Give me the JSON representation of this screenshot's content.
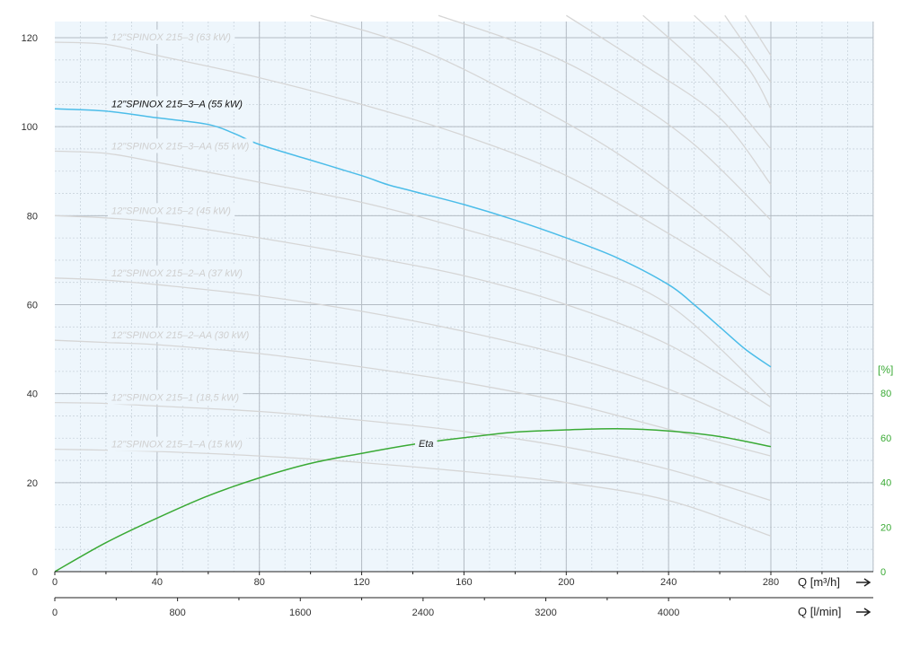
{
  "chart_data": {
    "type": "line",
    "x_unit_primary": "Q [m³/h]",
    "x_unit_secondary": "Q [l/min]",
    "eta_unit": "[%]",
    "xlim": [
      0,
      320
    ],
    "ylim": [
      0,
      125
    ],
    "eta_lim": [
      0,
      100
    ],
    "x_ticks": [
      0,
      40,
      80,
      120,
      160,
      200,
      240,
      280
    ],
    "x2_ticks": [
      0,
      800,
      1600,
      2400,
      3200,
      4000
    ],
    "y_ticks": [
      0,
      20,
      40,
      60,
      80,
      100,
      120
    ],
    "eta_ticks": [
      0,
      20,
      40,
      60,
      80
    ],
    "grid": true,
    "background_color": "#eef6fc",
    "colors": {
      "highlight": "#4cbde9",
      "eta": "#3aaa35",
      "other": "#d6d6d6",
      "other_label": "#cfcfcf"
    },
    "series": [
      {
        "name": "12\"SPINOX 215–3 (63 kW)",
        "highlight": false,
        "points": [
          [
            0,
            119
          ],
          [
            20,
            118.5
          ],
          [
            40,
            116
          ],
          [
            80,
            111
          ],
          [
            120,
            105
          ],
          [
            160,
            98
          ],
          [
            200,
            89
          ],
          [
            240,
            76
          ],
          [
            280,
            62
          ]
        ]
      },
      {
        "name": "12\"SPINOX 215–3–A (55 kW)",
        "highlight": true,
        "points": [
          [
            0,
            104
          ],
          [
            20,
            103.5
          ],
          [
            40,
            102
          ],
          [
            60,
            100.5
          ],
          [
            70,
            98.5
          ],
          [
            80,
            96
          ],
          [
            100,
            92.5
          ],
          [
            120,
            89
          ],
          [
            130,
            87
          ],
          [
            140,
            85.5
          ],
          [
            160,
            82.5
          ],
          [
            180,
            79
          ],
          [
            200,
            75
          ],
          [
            220,
            70.5
          ],
          [
            240,
            64.5
          ],
          [
            250,
            60
          ],
          [
            260,
            55
          ],
          [
            270,
            50
          ],
          [
            280,
            46
          ]
        ]
      },
      {
        "name": "12\"SPINOX 215–3–AA (55 kW)",
        "highlight": false,
        "points": [
          [
            0,
            94.5
          ],
          [
            20,
            94
          ],
          [
            40,
            92
          ],
          [
            80,
            87.5
          ],
          [
            120,
            83
          ],
          [
            160,
            77
          ],
          [
            200,
            70
          ],
          [
            240,
            60
          ],
          [
            280,
            39
          ]
        ]
      },
      {
        "name": "12\"SPINOX 215–2 (45 kW)",
        "highlight": false,
        "points": [
          [
            0,
            80
          ],
          [
            20,
            79.5
          ],
          [
            40,
            78.5
          ],
          [
            80,
            75
          ],
          [
            120,
            71
          ],
          [
            160,
            66.5
          ],
          [
            200,
            60
          ],
          [
            240,
            51
          ],
          [
            280,
            37
          ]
        ]
      },
      {
        "name": "12\"SPINOX 215–2–A (37 kW)",
        "highlight": false,
        "points": [
          [
            0,
            66
          ],
          [
            20,
            65.5
          ],
          [
            40,
            64.5
          ],
          [
            80,
            62
          ],
          [
            120,
            58.5
          ],
          [
            160,
            54
          ],
          [
            200,
            48.5
          ],
          [
            240,
            41
          ],
          [
            280,
            31
          ]
        ]
      },
      {
        "name": "12\"SPINOX 215–2–AA (30 kW)",
        "highlight": false,
        "points": [
          [
            0,
            52
          ],
          [
            20,
            51.5
          ],
          [
            40,
            51
          ],
          [
            80,
            49
          ],
          [
            120,
            46
          ],
          [
            160,
            42.5
          ],
          [
            200,
            38
          ],
          [
            240,
            32
          ],
          [
            280,
            26
          ]
        ]
      },
      {
        "name": "12\"SPINOX 215–1 (18,5 kW)",
        "highlight": false,
        "points": [
          [
            0,
            38
          ],
          [
            20,
            37.8
          ],
          [
            40,
            37.2
          ],
          [
            80,
            36
          ],
          [
            120,
            34
          ],
          [
            160,
            31.5
          ],
          [
            200,
            28
          ],
          [
            240,
            23
          ],
          [
            280,
            16
          ]
        ]
      },
      {
        "name": "12\"SPINOX 215–1–A (15 kW)",
        "highlight": false,
        "points": [
          [
            0,
            27.5
          ],
          [
            20,
            27.3
          ],
          [
            40,
            27
          ],
          [
            80,
            26
          ],
          [
            120,
            24.5
          ],
          [
            160,
            22.5
          ],
          [
            200,
            20
          ],
          [
            240,
            16
          ],
          [
            280,
            8
          ]
        ]
      },
      {
        "name": "Eta",
        "axis": "eta",
        "points": [
          [
            0,
            0
          ],
          [
            20,
            13
          ],
          [
            40,
            24
          ],
          [
            60,
            34
          ],
          [
            80,
            42
          ],
          [
            100,
            48.5
          ],
          [
            120,
            53
          ],
          [
            140,
            57
          ],
          [
            160,
            60
          ],
          [
            180,
            62.5
          ],
          [
            200,
            63.5
          ],
          [
            220,
            64
          ],
          [
            240,
            63
          ],
          [
            260,
            60.5
          ],
          [
            280,
            56
          ]
        ]
      }
    ],
    "upper_gray_curves": [
      [
        [
          100,
          125
        ],
        [
          140,
          118
        ],
        [
          180,
          107
        ],
        [
          220,
          94
        ],
        [
          260,
          77
        ],
        [
          280,
          66
        ]
      ],
      [
        [
          150,
          125
        ],
        [
          190,
          117
        ],
        [
          220,
          108
        ],
        [
          250,
          96
        ],
        [
          280,
          79
        ]
      ],
      [
        [
          200,
          125
        ],
        [
          230,
          114
        ],
        [
          260,
          102
        ],
        [
          280,
          87
        ]
      ],
      [
        [
          230,
          125
        ],
        [
          255,
          112
        ],
        [
          280,
          95
        ]
      ],
      [
        [
          250,
          125
        ],
        [
          270,
          114
        ],
        [
          280,
          104
        ]
      ],
      [
        [
          262,
          125
        ],
        [
          280,
          110
        ]
      ],
      [
        [
          270,
          125
        ],
        [
          280,
          116
        ]
      ]
    ]
  }
}
